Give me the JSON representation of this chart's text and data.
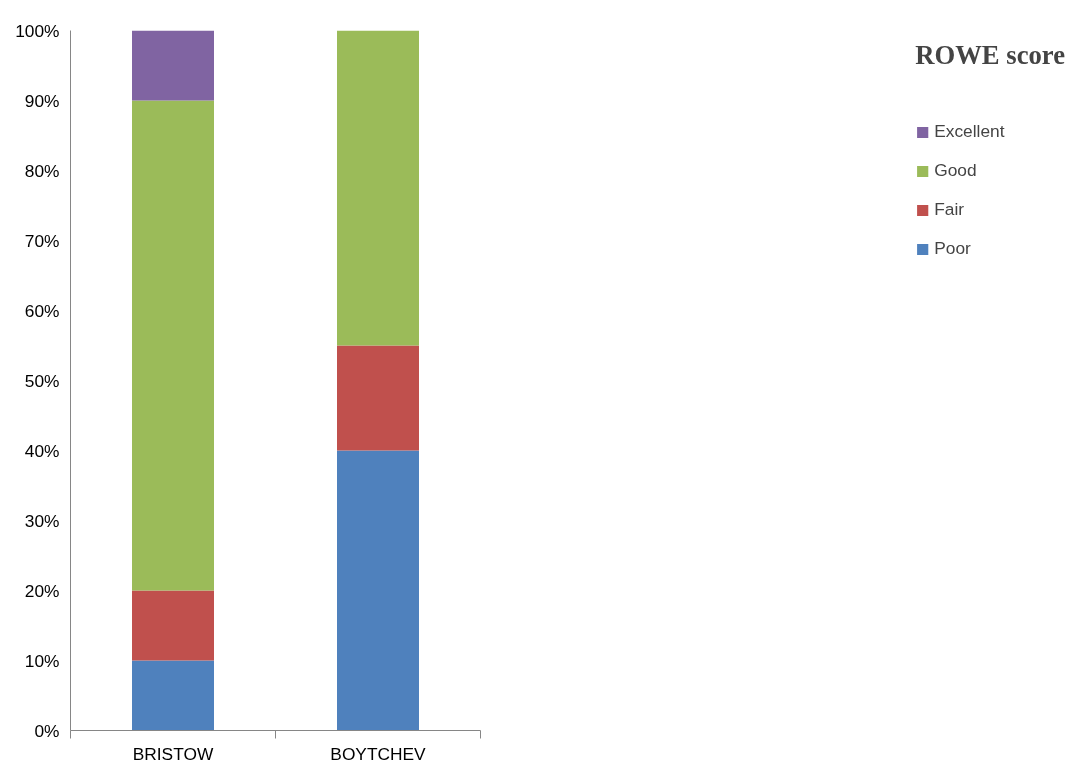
{
  "chart_data": {
    "type": "bar",
    "stacked": true,
    "legend_title": "ROWE score",
    "categories": [
      "BRISTOW",
      "BOYTCHEV"
    ],
    "series": [
      {
        "name": "Poor",
        "color": "#4f81bd",
        "values": [
          10,
          40
        ]
      },
      {
        "name": "Fair",
        "color": "#c0504d",
        "values": [
          10,
          15
        ]
      },
      {
        "name": "Good",
        "color": "#9bbb59",
        "values": [
          70,
          45
        ]
      },
      {
        "name": "Excellent",
        "color": "#8064a2",
        "values": [
          10,
          0
        ]
      }
    ],
    "ylim": [
      0,
      100
    ],
    "yticks": [
      {
        "value": 0,
        "label": "0%"
      },
      {
        "value": 10,
        "label": "10%"
      },
      {
        "value": 20,
        "label": "20%"
      },
      {
        "value": 30,
        "label": "30%"
      },
      {
        "value": 40,
        "label": "40%"
      },
      {
        "value": 50,
        "label": "50%"
      },
      {
        "value": 60,
        "label": "60%"
      },
      {
        "value": 70,
        "label": "70%"
      },
      {
        "value": 80,
        "label": "80%"
      },
      {
        "value": 90,
        "label": "90%"
      },
      {
        "value": 100,
        "label": "100%"
      }
    ],
    "grid": false,
    "legend": "right"
  }
}
